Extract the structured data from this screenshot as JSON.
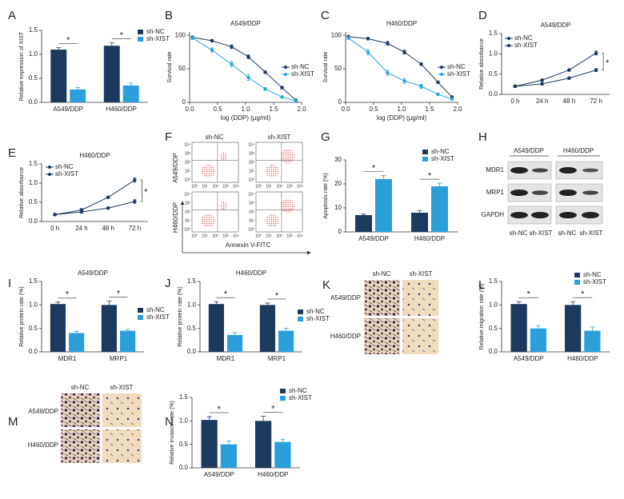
{
  "chart_data": [
    {
      "label": "A",
      "type": "bar",
      "ylabel": "Relative expression of XIST",
      "categories": [
        "A549/DDP",
        "H460/DDP"
      ],
      "series": [
        {
          "name": "sh-NC",
          "color": "#1c3a5e",
          "values": [
            1.1,
            1.18
          ],
          "errors": [
            0.04,
            0.06
          ]
        },
        {
          "name": "sh-XIST",
          "color": "#2b9fd9",
          "values": [
            0.27,
            0.35
          ],
          "errors": [
            0.04,
            0.05
          ]
        }
      ],
      "ylim": [
        0,
        1.5
      ],
      "yticks": [
        {
          "value": 0,
          "label": "0.0"
        },
        {
          "value": 0.5,
          "label": "0.5"
        },
        {
          "value": 1,
          "label": "1.0"
        },
        {
          "value": 1.5,
          "label": "1.5"
        }
      ],
      "legend": "upper right",
      "annotations": [
        "*",
        "*"
      ]
    },
    {
      "label": "B",
      "type": "line",
      "title": "A549/DDP",
      "xlabel": "log (DDP) (μg/ml)",
      "ylabel": "Survival rate",
      "x": [
        0.05,
        0.4,
        0.75,
        1.05,
        1.35,
        1.65,
        1.9
      ],
      "series": [
        {
          "name": "sh-NC",
          "color": "#1c3a5e",
          "values": [
            97,
            92,
            83,
            68,
            45,
            22,
            3
          ],
          "errors": [
            2,
            2,
            3,
            3,
            2,
            2,
            1
          ]
        },
        {
          "name": "sh-XIST",
          "color": "#2b9fd9",
          "values": [
            96,
            78,
            57,
            37,
            20,
            8,
            2
          ],
          "errors": [
            2,
            3,
            4,
            4,
            2,
            1,
            1
          ]
        }
      ],
      "xlim": [
        0,
        2
      ],
      "xticks": [
        {
          "value": 0,
          "label": "0.0"
        },
        {
          "value": 0.5,
          "label": "0.5"
        },
        {
          "value": 1,
          "label": "1.0"
        },
        {
          "value": 1.5,
          "label": "1.5"
        },
        {
          "value": 2,
          "label": "2.0"
        }
      ],
      "ylim": [
        0,
        105
      ],
      "yticks": [
        0,
        50,
        100
      ],
      "legend": "right"
    },
    {
      "label": "C",
      "type": "line",
      "title": "H460/DDP",
      "xlabel": "log (DDP) (μg/ml)",
      "ylabel": "Survival rate",
      "x": [
        0.05,
        0.4,
        0.75,
        1.05,
        1.35,
        1.65,
        1.9
      ],
      "series": [
        {
          "name": "sh-NC",
          "color": "#1c3a5e",
          "values": [
            98,
            95,
            88,
            75,
            57,
            30,
            8
          ],
          "errors": [
            2,
            2,
            3,
            3,
            2,
            2,
            1
          ]
        },
        {
          "name": "sh-XIST",
          "color": "#2b9fd9",
          "values": [
            96,
            75,
            44,
            32,
            24,
            12,
            5
          ],
          "errors": [
            2,
            4,
            4,
            4,
            3,
            1,
            1
          ]
        }
      ],
      "xlim": [
        0,
        2
      ],
      "xticks": [
        {
          "value": 0,
          "label": "0.0"
        },
        {
          "value": 0.5,
          "label": "0.5"
        },
        {
          "value": 1,
          "label": "1.0"
        },
        {
          "value": 1.5,
          "label": "1.5"
        },
        {
          "value": 2,
          "label": "2.0"
        }
      ],
      "ylim": [
        0,
        105
      ],
      "yticks": [
        0,
        50,
        100
      ],
      "legend": "right"
    },
    {
      "label": "D",
      "type": "line",
      "title": "A549/DDP",
      "ylabel": "Relative absorbance",
      "categories": [
        "0 h",
        "24 h",
        "48 h",
        "72 h"
      ],
      "series": [
        {
          "name": "sh-NC",
          "color": "#1c3a5e",
          "values": [
            0.2,
            0.35,
            0.6,
            1.02
          ],
          "errors": [
            0.03,
            0.03,
            0.03,
            0.05
          ]
        },
        {
          "name": "sh-XIST",
          "color": "#1c3a5e",
          "values": [
            0.2,
            0.26,
            0.4,
            0.6
          ],
          "errors": [
            0.03,
            0.03,
            0.03,
            0.04
          ]
        }
      ],
      "ylim": [
        0,
        1.5
      ],
      "yticks": [
        {
          "value": 0,
          "label": "0.0"
        },
        {
          "value": 0.5,
          "label": "0.5"
        },
        {
          "value": 1,
          "label": "1.0"
        },
        {
          "value": 1.5,
          "label": "1.5"
        }
      ],
      "legend": "upper left",
      "annotations": [
        "*"
      ]
    },
    {
      "label": "E",
      "type": "line",
      "title": "H460/DDP",
      "ylabel": "Relative absorbance",
      "categories": [
        "0 h",
        "24 h",
        "48 h",
        "72 h"
      ],
      "series": [
        {
          "name": "sh-NC",
          "color": "#1c3a5e",
          "values": [
            0.18,
            0.3,
            0.63,
            1.08
          ],
          "errors": [
            0.03,
            0.04,
            0.03,
            0.06
          ]
        },
        {
          "name": "sh-XIST",
          "color": "#1c3a5e",
          "values": [
            0.18,
            0.25,
            0.35,
            0.52
          ],
          "errors": [
            0.03,
            0.03,
            0.03,
            0.05
          ]
        }
      ],
      "ylim": [
        0,
        1.5
      ],
      "yticks": [
        {
          "value": 0,
          "label": "0.0"
        },
        {
          "value": 0.5,
          "label": "0.5"
        },
        {
          "value": 1,
          "label": "1.0"
        },
        {
          "value": 1.5,
          "label": "1.5"
        }
      ],
      "legend": "upper left",
      "annotations": [
        "*"
      ]
    },
    {
      "label": "G",
      "type": "bar",
      "ylabel": "Apoptosis rate (%)",
      "categories": [
        "A549/DDP",
        "H460/DDP"
      ],
      "series": [
        {
          "name": "sh-NC",
          "color": "#1c3a5e",
          "values": [
            7,
            8
          ],
          "errors": [
            0.4,
            0.8
          ]
        },
        {
          "name": "sh-XIST",
          "color": "#2b9fd9",
          "values": [
            22,
            19
          ],
          "errors": [
            1.5,
            1.3
          ]
        }
      ],
      "ylim": [
        0,
        30
      ],
      "yticks": [
        0,
        10,
        20,
        30
      ],
      "legend": "upper right",
      "annotations": [
        "*",
        "*"
      ]
    },
    {
      "label": "I",
      "type": "bar",
      "title": "A549/DDP",
      "ylabel": "Relative protein rate (%)",
      "categories": [
        "MDR1",
        "MRP1"
      ],
      "series": [
        {
          "name": "sh-NC",
          "color": "#1c3a5e",
          "values": [
            1.02,
            1.0
          ],
          "errors": [
            0.04,
            0.08
          ]
        },
        {
          "name": "sh-XIST",
          "color": "#2b9fd9",
          "values": [
            0.4,
            0.45
          ],
          "errors": [
            0.04,
            0.03
          ]
        }
      ],
      "ylim": [
        0,
        1.5
      ],
      "yticks": [
        {
          "value": 0,
          "label": "0.0"
        },
        {
          "value": 0.5,
          "label": "0.5"
        },
        {
          "value": 1,
          "label": "1.0"
        },
        {
          "value": 1.5,
          "label": "1.5"
        }
      ],
      "legend": "right",
      "annotations": [
        "*",
        "*"
      ]
    },
    {
      "label": "J",
      "type": "bar",
      "title": "H460/DDP",
      "ylabel": "Relative protein rate (%)",
      "categories": [
        "MDR1",
        "MRP1"
      ],
      "series": [
        {
          "name": "sh-NC",
          "color": "#1c3a5e",
          "values": [
            1.02,
            1.0
          ],
          "errors": [
            0.05,
            0.04
          ]
        },
        {
          "name": "sh-XIST",
          "color": "#2b9fd9",
          "values": [
            0.36,
            0.45
          ],
          "errors": [
            0.05,
            0.05
          ]
        }
      ],
      "ylim": [
        0,
        1.5
      ],
      "yticks": [
        {
          "value": 0,
          "label": "0.0"
        },
        {
          "value": 0.5,
          "label": "0.5"
        },
        {
          "value": 1,
          "label": "1.0"
        },
        {
          "value": 1.5,
          "label": "1.5"
        }
      ],
      "legend": "right",
      "annotations": [
        "*",
        "*"
      ]
    },
    {
      "label": "L",
      "type": "bar",
      "ylabel": "Relative migration rate (%)",
      "categories": [
        "A549/DDP",
        "H460/DDP"
      ],
      "series": [
        {
          "name": "sh-NC",
          "color": "#1c3a5e",
          "values": [
            1.02,
            1.0
          ],
          "errors": [
            0.05,
            0.07
          ]
        },
        {
          "name": "sh-XIST",
          "color": "#2b9fd9",
          "values": [
            0.5,
            0.45
          ],
          "errors": [
            0.06,
            0.08
          ]
        }
      ],
      "ylim": [
        0,
        1.5
      ],
      "yticks": [
        {
          "value": 0,
          "label": "0.0"
        },
        {
          "value": 0.5,
          "label": "0.5"
        },
        {
          "value": 1,
          "label": "1.0"
        },
        {
          "value": 1.5,
          "label": "1.5"
        }
      ],
      "legend": "upper right",
      "annotations": [
        "*",
        "*"
      ]
    },
    {
      "label": "N",
      "type": "bar",
      "ylabel": "Relative invasion rate (%)",
      "categories": [
        "A549/DDP",
        "H460/DDP"
      ],
      "series": [
        {
          "name": "sh-NC",
          "color": "#1c3a5e",
          "values": [
            1.02,
            1.0
          ],
          "errors": [
            0.07,
            0.1
          ]
        },
        {
          "name": "sh-XIST",
          "color": "#2b9fd9",
          "values": [
            0.5,
            0.55
          ],
          "errors": [
            0.07,
            0.06
          ]
        }
      ],
      "ylim": [
        0,
        1.5
      ],
      "yticks": [
        {
          "value": 0,
          "label": "0.0"
        },
        {
          "value": 0.5,
          "label": "0.5"
        },
        {
          "value": 1,
          "label": "1.0"
        },
        {
          "value": 1.5,
          "label": "1.5"
        }
      ],
      "legend": "upper right",
      "annotations": [
        "*",
        "*"
      ]
    }
  ],
  "image_panels": {
    "F": {
      "label": "F",
      "columns": [
        "sh-NC",
        "sh-XIST"
      ],
      "rows": [
        "A549/DDP",
        "H460/DDP"
      ],
      "xlabel": "Annexin V-FITC",
      "ticks": [
        "10⁰",
        "10¹",
        "10²",
        "10³",
        "10⁴"
      ]
    },
    "H": {
      "label": "H",
      "groups": [
        "A549/DDP",
        "H460/DDP"
      ],
      "rows": [
        "MDR1",
        "MRP1",
        "GAPDH"
      ],
      "lanes": [
        "sh-NC",
        "sh-XIST",
        "sh-NC",
        "sh-XIST"
      ]
    },
    "K": {
      "label": "K",
      "columns": [
        "sh-NC",
        "sh-XIST"
      ],
      "rows": [
        "A549/DDP",
        "H460/DDP"
      ]
    },
    "M": {
      "label": "M",
      "columns": [
        "sh-NC",
        "sh-XIST"
      ],
      "rows": [
        "A549/DDP",
        "H460/DDP"
      ]
    }
  }
}
